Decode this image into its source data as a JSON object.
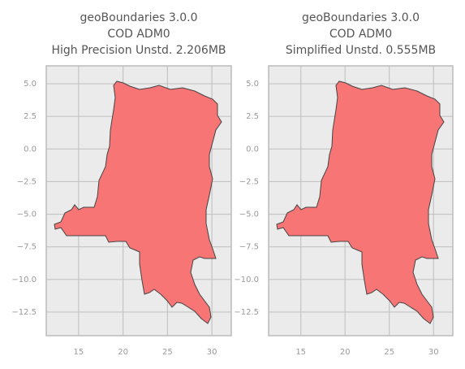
{
  "chart_data": [
    {
      "type": "map",
      "title": [
        "geoBoundaries 3.0.0",
        "COD ADM0",
        "High Precision Unstd. 2.206MB"
      ],
      "color": "#f87575",
      "grid": true,
      "xlim": [
        11.36,
        32.18
      ],
      "ylim": [
        -14.31,
        6.375
      ],
      "xticks": [
        15,
        20,
        25,
        30
      ],
      "yticks": [
        {
          "value": 5,
          "label": "5.0"
        },
        2.5,
        {
          "value": 0,
          "label": "0.0"
        },
        {
          "value": -2.5,
          "label": "−2.5"
        },
        {
          "value": -5,
          "label": "−5.0"
        },
        {
          "value": -7.5,
          "label": "−7.5"
        },
        {
          "value": -10,
          "label": "−10.0"
        },
        {
          "value": -12.5,
          "label": "−12.5"
        }
      ]
    },
    {
      "type": "map",
      "title": [
        "geoBoundaries 3.0.0",
        "COD ADM0",
        "Simplified Unstd. 0.555MB"
      ],
      "color": "#f87575",
      "grid": true,
      "xlim": [
        11.36,
        32.18
      ],
      "ylim": [
        -14.31,
        6.375
      ],
      "xticks": [
        15,
        20,
        25,
        30
      ],
      "yticks": [
        {
          "value": 5,
          "label": "5.0"
        },
        2.5,
        {
          "value": 0,
          "label": "0.0"
        },
        {
          "value": -2.5,
          "label": "−2.5"
        },
        {
          "value": -5,
          "label": "−5.0"
        },
        {
          "value": -7.5,
          "label": "−7.5"
        },
        {
          "value": -10,
          "label": "−10.0"
        },
        {
          "value": -12.5,
          "label": "−12.5"
        }
      ]
    }
  ]
}
